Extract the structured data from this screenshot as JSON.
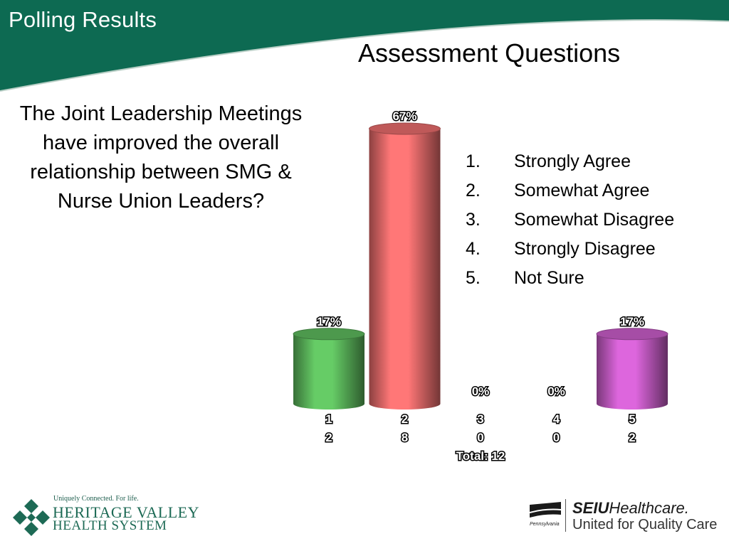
{
  "header": {
    "label": "Polling Results"
  },
  "slide": {
    "title": "Assessment Questions",
    "question": "The Joint Leadership Meetings have improved the overall relationship between SMG & Nurse Union Leaders?"
  },
  "legend": [
    {
      "num": "1.",
      "label": "Strongly Agree"
    },
    {
      "num": "2.",
      "label": "Somewhat Agree"
    },
    {
      "num": "3.",
      "label": "Somewhat Disagree"
    },
    {
      "num": "4.",
      "label": "Strongly Disagree"
    },
    {
      "num": "5.",
      "label": "Not Sure"
    }
  ],
  "chart_data": {
    "type": "bar",
    "categories": [
      "1",
      "2",
      "3",
      "4",
      "5"
    ],
    "values": [
      17,
      67,
      0,
      0,
      17
    ],
    "value_labels": [
      "17%",
      "67%",
      "0%",
      "0%",
      "17%"
    ],
    "counts": [
      "2",
      "8",
      "0",
      "0",
      "2"
    ],
    "colors": [
      "#66cc66",
      "#ff7777",
      "#9999ff",
      "#99ccff",
      "#dd66dd"
    ],
    "total_label": "Total: 12",
    "ylim": [
      0,
      67
    ],
    "grid": false
  },
  "logos": {
    "left": {
      "tagline": "Uniquely Connected. For life.",
      "line1": "HERITAGE VALLEY",
      "line2": "HEALTH SYSTEM"
    },
    "right": {
      "line1_bold": "SEIU",
      "line1_rest": "Healthcare.",
      "line2": "United for Quality Care",
      "state": "Pennsylvania"
    }
  },
  "colors": {
    "brand_green": "#0d6a52"
  }
}
